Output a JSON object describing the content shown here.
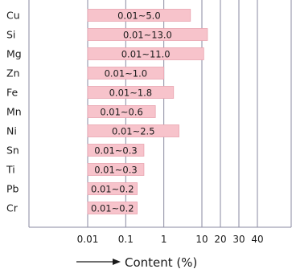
{
  "chart_data": {
    "type": "bar",
    "orientation": "horizontal",
    "categories": [
      "Cu",
      "Si",
      "Mg",
      "Zn",
      "Fe",
      "Mn",
      "Ni",
      "Sn",
      "Ti",
      "Pb",
      "Cr"
    ],
    "ranges": [
      [
        0.01,
        5.0
      ],
      [
        0.01,
        13.0
      ],
      [
        0.01,
        11.0
      ],
      [
        0.01,
        1.0
      ],
      [
        0.01,
        1.8
      ],
      [
        0.01,
        0.6
      ],
      [
        0.01,
        2.5
      ],
      [
        0.01,
        0.3
      ],
      [
        0.01,
        0.3
      ],
      [
        0.01,
        0.2
      ],
      [
        0.01,
        0.2
      ]
    ],
    "bar_labels": [
      "0.01~5.0",
      "0.01~13.0",
      "0.01~11.0",
      "0.01~1.0",
      "0.01~1.8",
      "0.01~0.6",
      "0.01~2.5",
      "0.01~0.3",
      "0.01~0.3",
      "0.01~0.2",
      "0.01~0.2"
    ],
    "xticks": [
      0.01,
      0.1,
      1,
      10,
      20,
      30,
      40
    ],
    "xtick_labels": [
      "0.01",
      "0.1",
      "1",
      "10",
      "20",
      "30",
      "40"
    ],
    "xlabel": "Content (%)",
    "xlabel_arrow": "right-arrow-icon",
    "xscale": "log (0.01–10), linear (10–40)",
    "xlim": [
      0.01,
      40
    ],
    "grid": true,
    "bar_color": "#f7c3cb",
    "bar_border_color": "#e9a4b0",
    "grid_color": "#8a8aa0"
  }
}
